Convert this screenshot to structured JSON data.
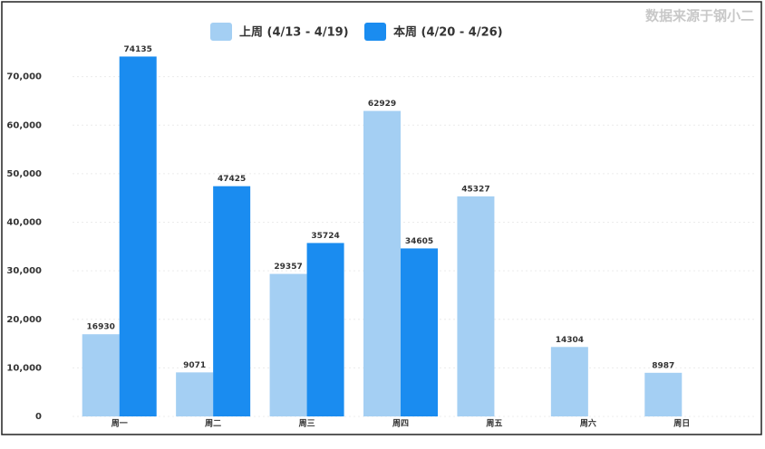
{
  "chart_data": {
    "type": "bar",
    "source": "数据来源于钢小二",
    "categories": [
      "周一",
      "周二",
      "周三",
      "周四",
      "周五",
      "周六",
      "周日"
    ],
    "series": [
      {
        "name": "上周 (4/13 - 4/19)",
        "color": "#a4cff3",
        "values": [
          16930,
          9071,
          29357,
          62929,
          45327,
          14304,
          8987
        ]
      },
      {
        "name": "本周 (4/20 - 4/26)",
        "color": "#1a8cf0",
        "values": [
          74135,
          47425,
          35724,
          34605,
          null,
          null,
          null
        ]
      }
    ],
    "ylim": [
      0,
      80000
    ],
    "yticks": [
      0,
      {
        "value": 10000,
        "label": "10,000"
      },
      {
        "value": 20000,
        "label": "20,000"
      },
      {
        "value": 30000,
        "label": "30,000"
      },
      {
        "value": 40000,
        "label": "40,000"
      },
      {
        "value": 50000,
        "label": "50,000"
      },
      {
        "value": 60000,
        "label": "60,000"
      },
      {
        "value": 70000,
        "label": "70,000"
      }
    ],
    "grid": true,
    "legend": "top"
  }
}
